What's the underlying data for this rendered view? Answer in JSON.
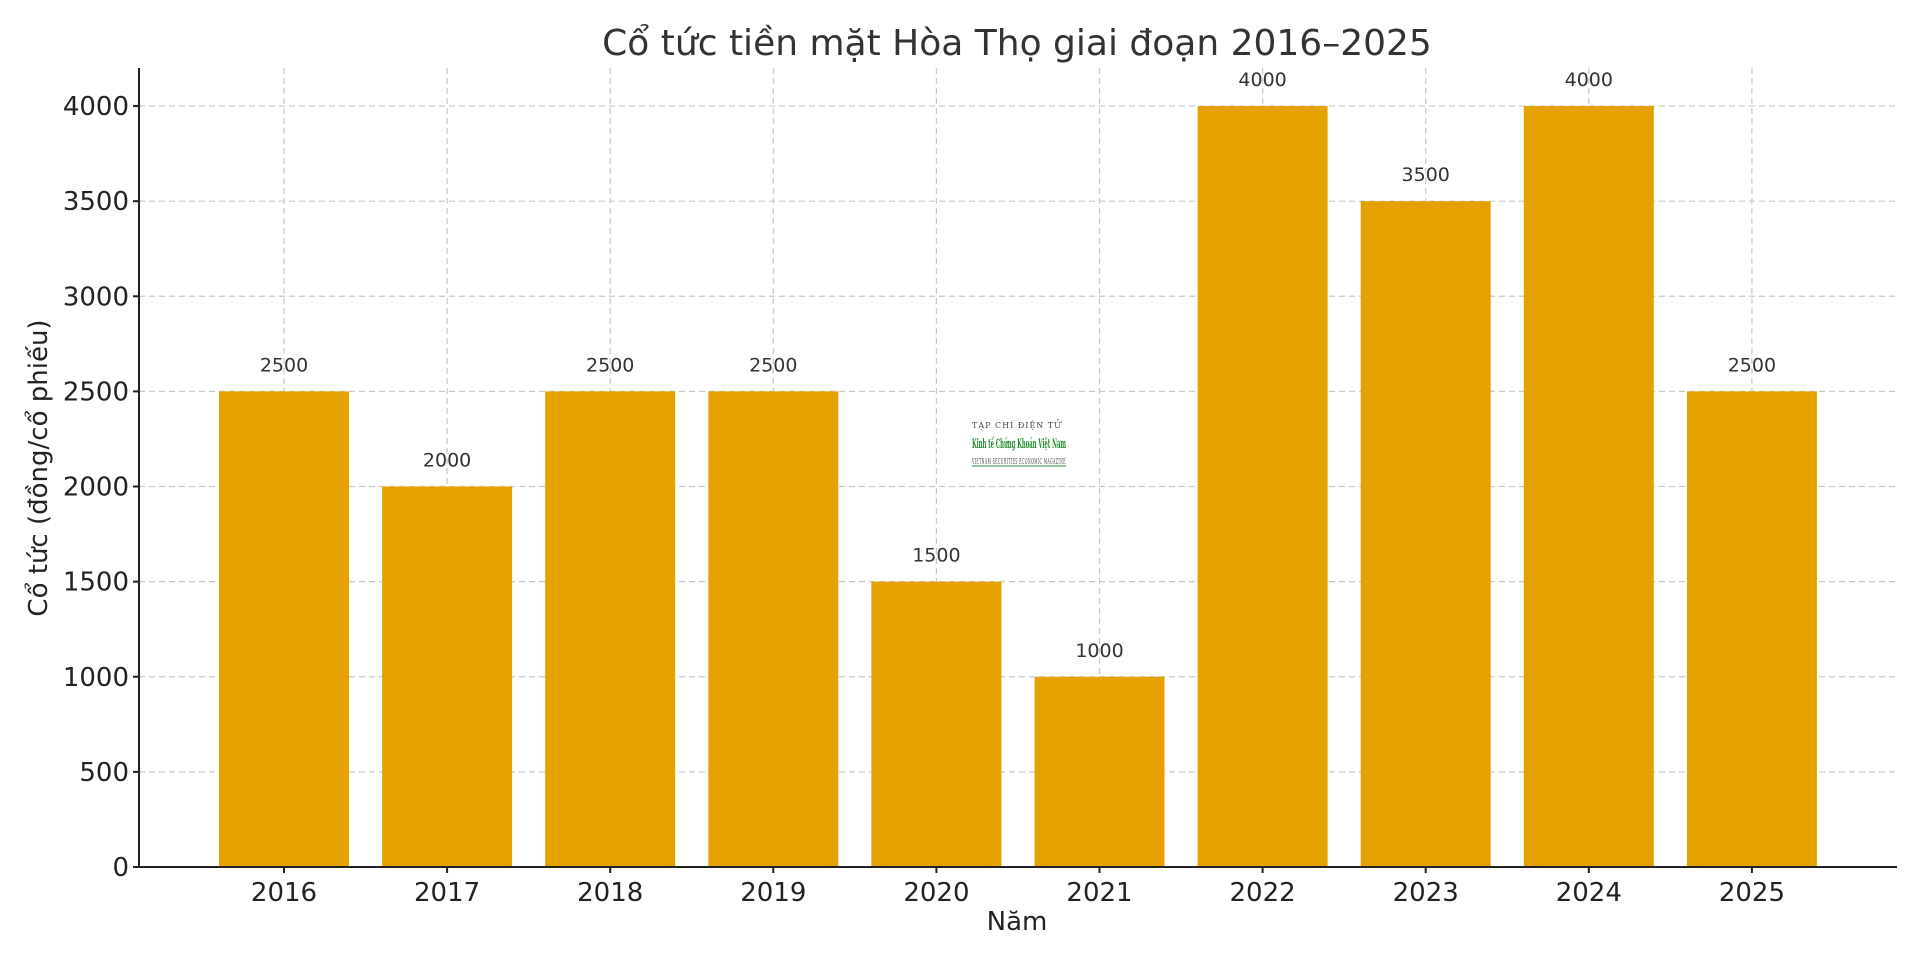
{
  "chart_data": {
    "type": "bar",
    "title": "Cổ tức tiền mặt Hòa Thọ giai đoạn 2016–2025",
    "xlabel": "Năm",
    "ylabel": "Cổ tức (đồng/cổ phiếu)",
    "categories": [
      "2016",
      "2017",
      "2018",
      "2019",
      "2020",
      "2021",
      "2022",
      "2023",
      "2024",
      "2025"
    ],
    "values": [
      2500,
      2000,
      2500,
      2500,
      1500,
      1000,
      4000,
      3500,
      4000,
      2500
    ],
    "ylim": [
      0,
      4200
    ],
    "yticks": [
      0,
      500,
      1000,
      1500,
      2000,
      2500,
      3000,
      3500,
      4000
    ],
    "grid": true,
    "bar_color": "#E5A100"
  },
  "watermark": {
    "line1": "TẠP CHÍ ĐIỆN TỬ",
    "line2": "Kinh tế Chứng Khoán Việt Nam",
    "line3": "VIETNAM SECURITIES ECONOMIC MAGAZINE"
  }
}
